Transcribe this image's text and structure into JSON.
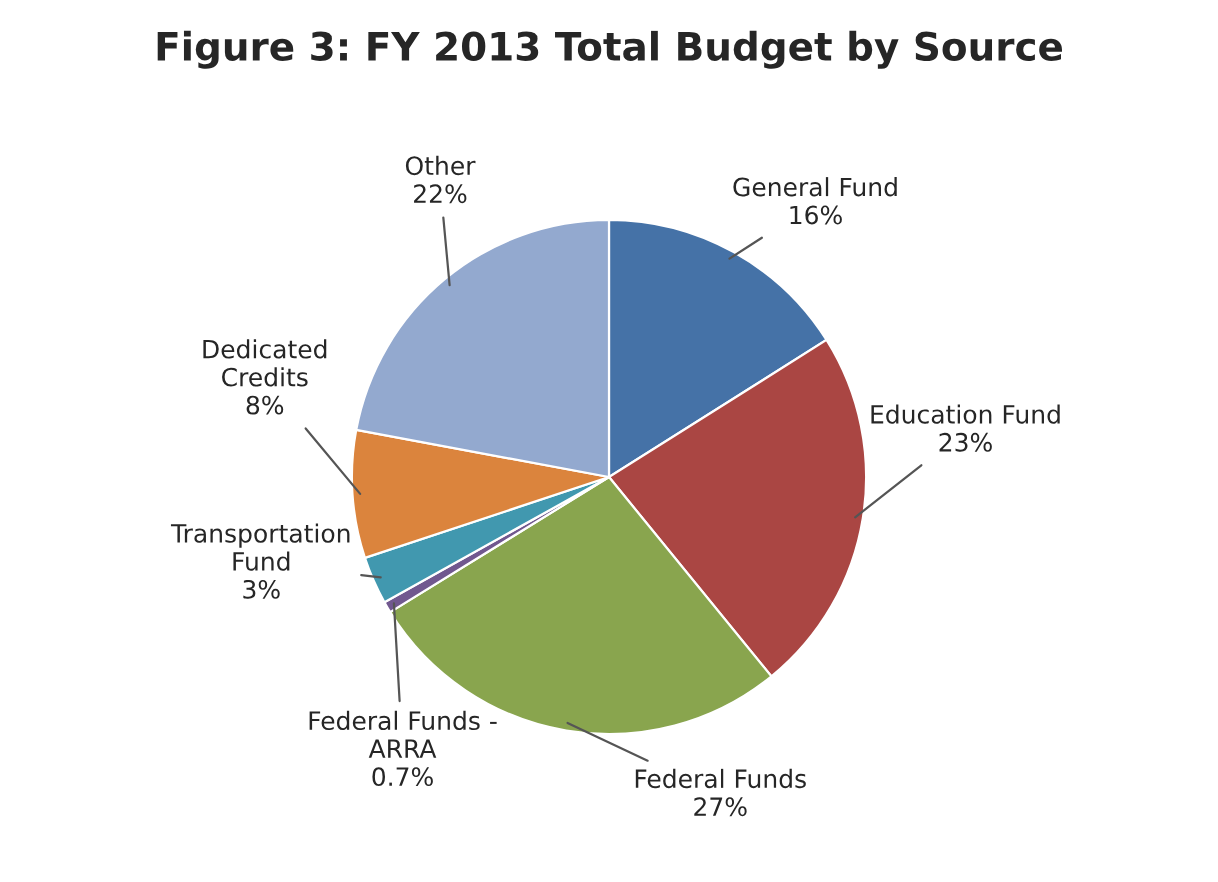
{
  "chart_data": {
    "type": "pie",
    "title": "Figure 3: FY 2013 Total Budget by Source",
    "categories": [
      "General Fund",
      "Education Fund",
      "Federal Funds",
      "Federal Funds -\nARRA",
      "Transportation\nFund",
      "Dedicated\nCredits",
      "Other"
    ],
    "values": [
      16,
      23,
      27,
      0.7,
      3,
      8,
      22
    ],
    "value_labels": [
      "16%",
      "23%",
      "27%",
      "0.7%",
      "3%",
      "8%",
      "22%"
    ],
    "colors": [
      "#4572a7",
      "#aa4643",
      "#89a54e",
      "#71588f",
      "#4198af",
      "#db843d",
      "#93a9cf"
    ]
  }
}
